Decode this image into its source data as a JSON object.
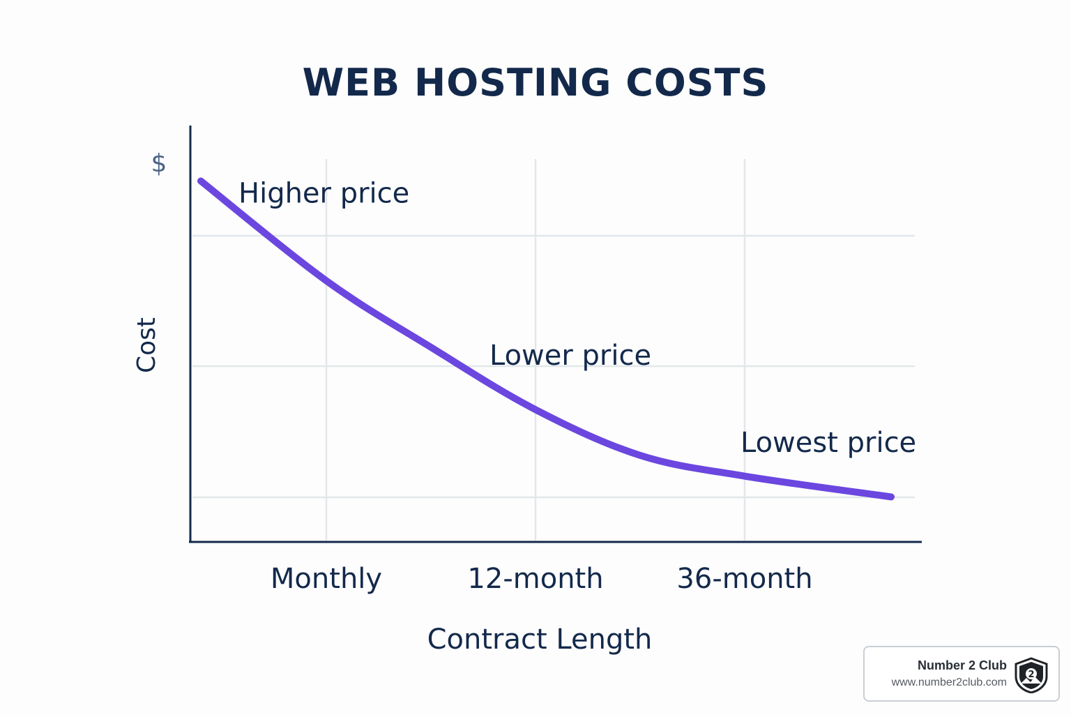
{
  "chart_data": {
    "type": "line",
    "title": "WEB HOSTING COSTS",
    "xlabel": "Contract Length",
    "ylabel": "Cost",
    "y_unit_symbol": "$",
    "categories": [
      "Monthly",
      "12-month",
      "36-month"
    ],
    "grid": true,
    "series": [
      {
        "values": [
          {
            "x": 0.4,
            "y": 0.87
          },
          {
            "x": 1.0,
            "y": 0.63
          },
          {
            "x": 1.5,
            "y": 0.47
          },
          {
            "x": 2.0,
            "y": 0.32
          },
          {
            "x": 2.5,
            "y": 0.21
          },
          {
            "x": 3.0,
            "y": 0.16
          },
          {
            "x": 3.7,
            "y": 0.11
          }
        ]
      }
    ],
    "annotations": [
      {
        "text": "Higher price",
        "x": 0.6,
        "y": 0.87
      },
      {
        "text": "Lower price",
        "x": 1.8,
        "y": 0.48
      },
      {
        "text": "Lowest price",
        "x": 3.0,
        "y": 0.27
      }
    ],
    "colors": {
      "line": "#6b47e0",
      "text": "#13294b",
      "grid": "#e3e7ea"
    }
  },
  "watermark": {
    "name": "Number 2 Club",
    "url": "www.number2club.com",
    "icon": "shield-logo-icon"
  }
}
